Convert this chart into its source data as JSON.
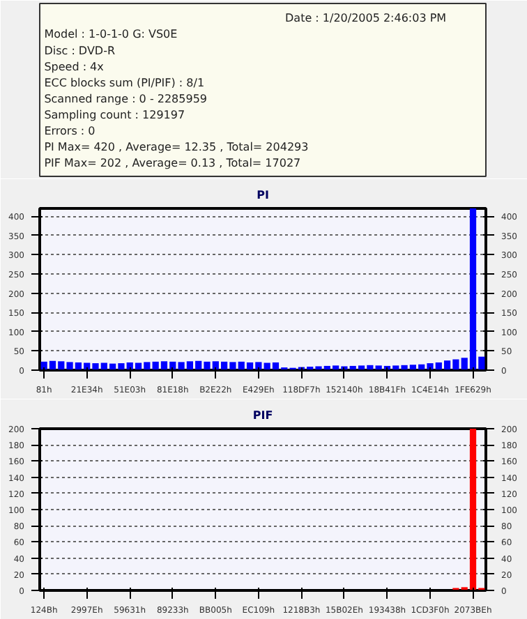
{
  "chart_data": [
    {
      "type": "other",
      "annotations": [
        "Date : 1/20/2005 2:46:03 PM",
        "Model : 1-0-1-0 G: VS0E",
        "Disc : DVD-R",
        "Speed : 4x",
        "ECC blocks sum (PI/PIF) : 8/1",
        "Scanned range : 0 - 2285959",
        "Sampling count : 129197",
        "Errors : 0",
        "PI Max= 420 , Average= 12.35 , Total= 204293",
        "PIF Max= 202 , Average= 0.13 , Total= 17027"
      ]
    },
    {
      "type": "bar",
      "title": "PI",
      "categories": [
        "81h",
        null,
        null,
        null,
        null,
        "21E34h",
        null,
        null,
        null,
        null,
        "51E03h",
        null,
        null,
        null,
        null,
        "81E18h",
        null,
        null,
        null,
        null,
        "B2E22h",
        null,
        null,
        null,
        null,
        "E429Eh",
        null,
        null,
        null,
        null,
        "118DF7h",
        null,
        null,
        null,
        null,
        "152140h",
        null,
        null,
        null,
        null,
        "18B41Fh",
        null,
        null,
        null,
        null,
        "1C4E14h",
        null,
        null,
        null,
        null,
        "1FE629h",
        null
      ],
      "series": [
        {
          "color": "#0000ff",
          "values": [
            22,
            24,
            23,
            21,
            20,
            19,
            18,
            19,
            17,
            18,
            20,
            19,
            21,
            22,
            23,
            22,
            21,
            23,
            24,
            22,
            23,
            22,
            21,
            22,
            20,
            21,
            19,
            20,
            7,
            6,
            8,
            9,
            10,
            11,
            12,
            10,
            11,
            12,
            13,
            12,
            11,
            12,
            13,
            14,
            15,
            18,
            20,
            25,
            28,
            32,
            420,
            35
          ]
        }
      ],
      "ylim": [
        0,
        420
      ],
      "yticks": [
        0,
        50,
        100,
        150,
        200,
        250,
        300,
        350,
        400
      ],
      "y2lim": [
        0,
        420
      ],
      "y2ticks": [
        0,
        50,
        100,
        150,
        200,
        250,
        300,
        350,
        400
      ],
      "grid": "y"
    },
    {
      "type": "bar",
      "title": "PIF",
      "categories": [
        "124Bh",
        null,
        null,
        null,
        null,
        "2997Eh",
        null,
        null,
        null,
        null,
        "59631h",
        null,
        null,
        null,
        null,
        "89233h",
        null,
        null,
        null,
        null,
        "BB005h",
        null,
        null,
        null,
        null,
        "EC109h",
        null,
        null,
        null,
        null,
        "1218B3h",
        null,
        null,
        null,
        null,
        "15B02Eh",
        null,
        null,
        null,
        null,
        "193438h",
        null,
        null,
        null,
        null,
        "1CD3F0h",
        null,
        null,
        null,
        null,
        "2073BEh",
        null
      ],
      "series": [
        {
          "color": "#ff0000",
          "values": [
            0,
            0,
            0,
            0,
            0,
            0,
            0,
            0,
            0,
            0,
            0,
            0,
            0,
            0,
            0,
            0,
            0,
            0,
            0,
            0,
            0,
            0,
            0,
            0,
            0,
            0,
            0,
            0,
            0,
            0,
            0,
            0,
            0,
            0,
            0,
            0,
            0,
            0,
            0,
            0,
            0,
            0,
            0,
            0,
            0,
            0,
            null,
            null,
            3,
            4,
            200,
            3
          ]
        }
      ],
      "ylim": [
        0,
        200
      ],
      "yticks": [
        0,
        20,
        40,
        60,
        80,
        100,
        120,
        140,
        160,
        180,
        200
      ],
      "y2lim": [
        0,
        200
      ],
      "y2ticks": [
        0,
        20,
        40,
        60,
        80,
        100,
        120,
        140,
        160,
        180,
        200
      ],
      "grid": "y"
    }
  ]
}
